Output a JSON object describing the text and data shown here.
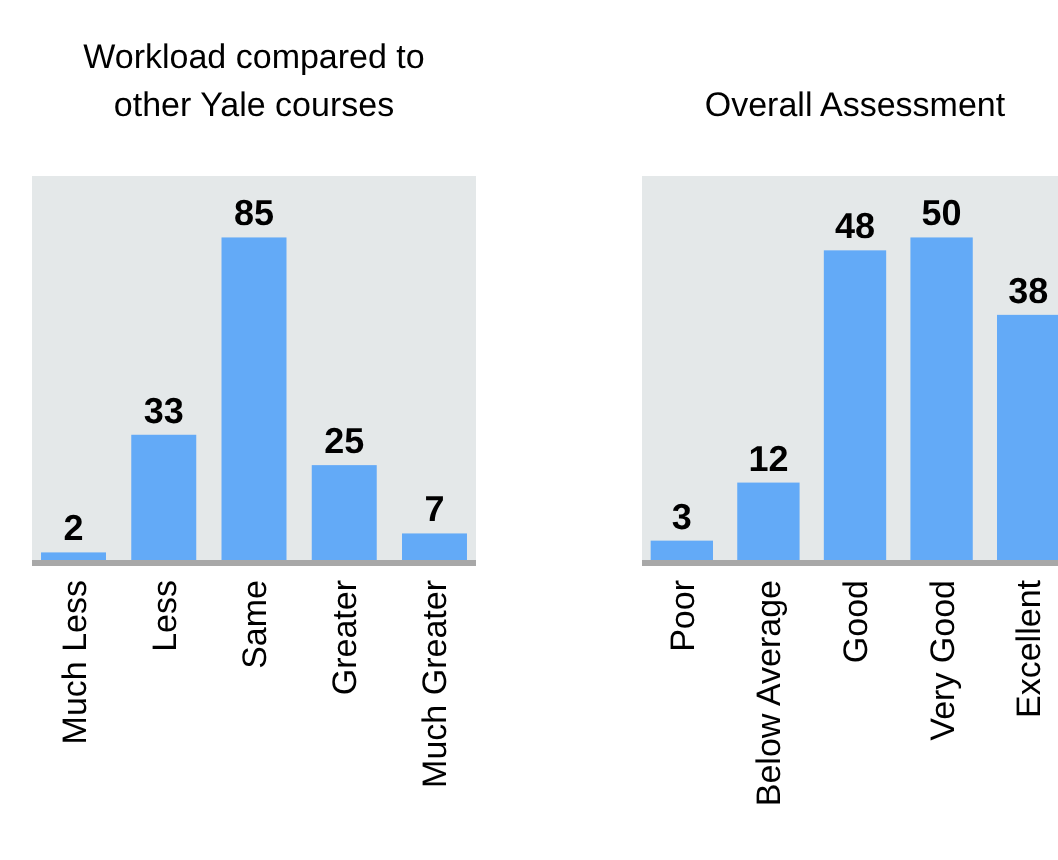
{
  "chart_data": [
    {
      "type": "bar",
      "title": "Workload compared to other Yale courses",
      "categories": [
        "Much Less",
        "Less",
        "Same",
        "Greater",
        "Much Greater"
      ],
      "values": [
        2,
        33,
        85,
        25,
        7
      ],
      "color": "#63aaf7",
      "data_labels": true
    },
    {
      "type": "bar",
      "title": "Overall Assessment",
      "categories": [
        "Poor",
        "Below Average",
        "Good",
        "Very Good",
        "Excellent"
      ],
      "values": [
        3,
        12,
        48,
        50,
        38
      ],
      "color": "#63aaf7",
      "data_labels": true
    }
  ]
}
